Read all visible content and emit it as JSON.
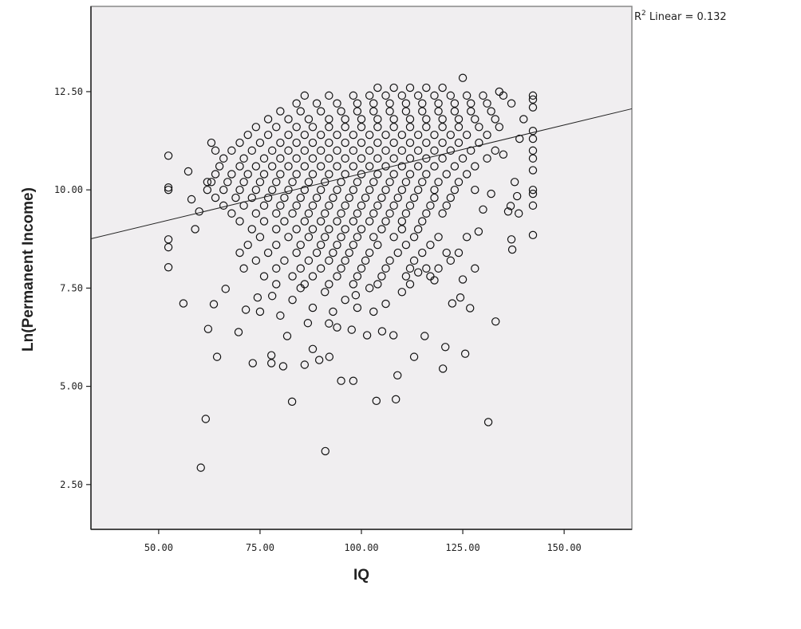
{
  "chart_data": {
    "type": "scatter",
    "xlabel": "IQ",
    "ylabel": "Ln(Permanent Income)",
    "xlim": [
      33.3,
      166.7
    ],
    "ylim": [
      1.36,
      14.67
    ],
    "xticks": [
      50,
      75,
      100,
      125,
      150
    ],
    "xtick_labels": [
      "50.00",
      "75.00",
      "100.00",
      "125.00",
      "150.00"
    ],
    "yticks": [
      2.5,
      5,
      7.5,
      10,
      12.5
    ],
    "ytick_labels": [
      "2.50",
      "5.00",
      "7.50",
      "10.00",
      "12.50"
    ],
    "grid": false,
    "background": "#f0eef0",
    "marker": "hollow-circle",
    "marker_color": "#111111",
    "annotation": {
      "prefix": "R",
      "sup": "2",
      "text": " Linear = 0.132"
    },
    "fit_line": {
      "type": "linear",
      "r_squared": 0.132,
      "intercept": 7.93,
      "slope": 0.0248
    },
    "points": [
      [
        52.4,
        10.87
      ],
      [
        52.4,
        10.06
      ],
      [
        52.4,
        10.0
      ],
      [
        52.4,
        8.74
      ],
      [
        52.4,
        8.54
      ],
      [
        52.4,
        8.03
      ],
      [
        56.1,
        7.11
      ],
      [
        60.4,
        2.93
      ],
      [
        61.6,
        4.17
      ],
      [
        62.2,
        6.46
      ],
      [
        63.6,
        7.09
      ],
      [
        64.4,
        5.75
      ],
      [
        58.1,
        9.76
      ],
      [
        57.3,
        10.47
      ],
      [
        59,
        9.0
      ],
      [
        60,
        9.45
      ],
      [
        62,
        10.2
      ],
      [
        63,
        11.2
      ],
      [
        64,
        11.0
      ],
      [
        66.5,
        7.48
      ],
      [
        69.7,
        6.38
      ],
      [
        71.5,
        6.95
      ],
      [
        73.2,
        5.59
      ],
      [
        74.4,
        7.26
      ],
      [
        77.8,
        5.59
      ],
      [
        77.8,
        5.79
      ],
      [
        80.7,
        5.51
      ],
      [
        81.7,
        6.28
      ],
      [
        82.9,
        4.61
      ],
      [
        86.0,
        5.55
      ],
      [
        86.8,
        6.61
      ],
      [
        88.0,
        5.95
      ],
      [
        89.6,
        5.67
      ],
      [
        91.1,
        3.35
      ],
      [
        92.1,
        5.75
      ],
      [
        95.0,
        5.14
      ],
      [
        98.0,
        5.14
      ],
      [
        97.6,
        6.44
      ],
      [
        98.6,
        7.32
      ],
      [
        101.4,
        6.3
      ],
      [
        103.7,
        4.63
      ],
      [
        105.1,
        6.4
      ],
      [
        107.9,
        6.3
      ],
      [
        108.5,
        4.67
      ],
      [
        108.9,
        5.28
      ],
      [
        113.0,
        5.75
      ],
      [
        115.6,
        6.28
      ],
      [
        120.1,
        5.45
      ],
      [
        120.7,
        6.0
      ],
      [
        122.4,
        7.11
      ],
      [
        124.4,
        7.26
      ],
      [
        125.0,
        7.72
      ],
      [
        125.6,
        5.83
      ],
      [
        126.8,
        6.99
      ],
      [
        128.9,
        8.94
      ],
      [
        133.1,
        6.65
      ],
      [
        131.3,
        4.09
      ],
      [
        142.3,
        12.4
      ],
      [
        142.3,
        12.3
      ],
      [
        142.3,
        12.1
      ],
      [
        142.3,
        11.5
      ],
      [
        142.3,
        11.3
      ],
      [
        142.3,
        11.0
      ],
      [
        142.3,
        10.8
      ],
      [
        142.3,
        10.5
      ],
      [
        142.3,
        10.0
      ],
      [
        142.3,
        9.9
      ],
      [
        142.3,
        9.6
      ],
      [
        142.3,
        8.85
      ],
      [
        136.8,
        9.59
      ],
      [
        136.2,
        9.45
      ],
      [
        137,
        8.74
      ],
      [
        137.2,
        8.48
      ],
      [
        138.4,
        9.84
      ],
      [
        138.8,
        9.4
      ],
      [
        137.8,
        10.2
      ],
      [
        135,
        10.9
      ],
      [
        139,
        11.3
      ],
      [
        140,
        11.8
      ],
      [
        134,
        12.5
      ],
      [
        83,
        7.2
      ],
      [
        85,
        7.5
      ],
      [
        88,
        7.0
      ],
      [
        91,
        7.4
      ],
      [
        93,
        6.9
      ],
      [
        96,
        7.2
      ],
      [
        99,
        7.0
      ],
      [
        102,
        7.5
      ],
      [
        106,
        7.1
      ],
      [
        110,
        7.4
      ],
      [
        114,
        7.9
      ],
      [
        118,
        7.7
      ],
      [
        78,
        7.3
      ],
      [
        80,
        6.8
      ],
      [
        75,
        6.9
      ],
      [
        92,
        6.6
      ],
      [
        94,
        6.5
      ],
      [
        103,
        6.9
      ],
      [
        116,
        8.0
      ],
      [
        121,
        8.4
      ],
      [
        126,
        8.8
      ],
      [
        130,
        9.5
      ],
      [
        132,
        9.9
      ],
      [
        104,
        12.6
      ],
      [
        108,
        12.6
      ],
      [
        112,
        12.6
      ],
      [
        116,
        12.6
      ],
      [
        120,
        12.6
      ],
      [
        125,
        12.85
      ],
      [
        86,
        12.4
      ],
      [
        92,
        12.4
      ],
      [
        98,
        12.4
      ],
      [
        102,
        12.4
      ],
      [
        106,
        12.4
      ],
      [
        110,
        12.4
      ],
      [
        114,
        12.4
      ],
      [
        118,
        12.4
      ],
      [
        122,
        12.4
      ],
      [
        126,
        12.4
      ],
      [
        130,
        12.4
      ],
      [
        135,
        12.4
      ],
      [
        84,
        12.2
      ],
      [
        89,
        12.2
      ],
      [
        94,
        12.2
      ],
      [
        99,
        12.2
      ],
      [
        103,
        12.2
      ],
      [
        107,
        12.2
      ],
      [
        111,
        12.2
      ],
      [
        115,
        12.2
      ],
      [
        119,
        12.2
      ],
      [
        123,
        12.2
      ],
      [
        127,
        12.2
      ],
      [
        131,
        12.2
      ],
      [
        137,
        12.2
      ],
      [
        80,
        12.0
      ],
      [
        85,
        12.0
      ],
      [
        90,
        12.0
      ],
      [
        95,
        12.0
      ],
      [
        99,
        12.0
      ],
      [
        103,
        12.0
      ],
      [
        107,
        12.0
      ],
      [
        111,
        12.0
      ],
      [
        115,
        12.0
      ],
      [
        119,
        12.0
      ],
      [
        123,
        12.0
      ],
      [
        127,
        12.0
      ],
      [
        132,
        12.0
      ],
      [
        77,
        11.8
      ],
      [
        82,
        11.8
      ],
      [
        87,
        11.8
      ],
      [
        92,
        11.8
      ],
      [
        96,
        11.8
      ],
      [
        100,
        11.8
      ],
      [
        104,
        11.8
      ],
      [
        108,
        11.8
      ],
      [
        112,
        11.8
      ],
      [
        116,
        11.8
      ],
      [
        120,
        11.8
      ],
      [
        124,
        11.8
      ],
      [
        128,
        11.8
      ],
      [
        133,
        11.8
      ],
      [
        74,
        11.6
      ],
      [
        79,
        11.6
      ],
      [
        84,
        11.6
      ],
      [
        88,
        11.6
      ],
      [
        92,
        11.6
      ],
      [
        96,
        11.6
      ],
      [
        100,
        11.6
      ],
      [
        104,
        11.6
      ],
      [
        108,
        11.6
      ],
      [
        112,
        11.6
      ],
      [
        116,
        11.6
      ],
      [
        120,
        11.6
      ],
      [
        124,
        11.6
      ],
      [
        129,
        11.6
      ],
      [
        134,
        11.6
      ],
      [
        72,
        11.4
      ],
      [
        77,
        11.4
      ],
      [
        82,
        11.4
      ],
      [
        86,
        11.4
      ],
      [
        90,
        11.4
      ],
      [
        94,
        11.4
      ],
      [
        98,
        11.4
      ],
      [
        102,
        11.4
      ],
      [
        106,
        11.4
      ],
      [
        110,
        11.4
      ],
      [
        114,
        11.4
      ],
      [
        118,
        11.4
      ],
      [
        122,
        11.4
      ],
      [
        126,
        11.4
      ],
      [
        131,
        11.4
      ],
      [
        70,
        11.2
      ],
      [
        75,
        11.2
      ],
      [
        80,
        11.2
      ],
      [
        84,
        11.2
      ],
      [
        88,
        11.2
      ],
      [
        92,
        11.2
      ],
      [
        96,
        11.2
      ],
      [
        100,
        11.2
      ],
      [
        104,
        11.2
      ],
      [
        108,
        11.2
      ],
      [
        112,
        11.2
      ],
      [
        116,
        11.2
      ],
      [
        120,
        11.2
      ],
      [
        124,
        11.2
      ],
      [
        129,
        11.2
      ],
      [
        68,
        11.0
      ],
      [
        73,
        11.0
      ],
      [
        78,
        11.0
      ],
      [
        82,
        11.0
      ],
      [
        86,
        11.0
      ],
      [
        90,
        11.0
      ],
      [
        94,
        11.0
      ],
      [
        98,
        11.0
      ],
      [
        102,
        11.0
      ],
      [
        106,
        11.0
      ],
      [
        110,
        11.0
      ],
      [
        114,
        11.0
      ],
      [
        118,
        11.0
      ],
      [
        122,
        11.0
      ],
      [
        127,
        11.0
      ],
      [
        133,
        11.0
      ],
      [
        66,
        10.8
      ],
      [
        71,
        10.8
      ],
      [
        76,
        10.8
      ],
      [
        80,
        10.8
      ],
      [
        84,
        10.8
      ],
      [
        88,
        10.8
      ],
      [
        92,
        10.8
      ],
      [
        96,
        10.8
      ],
      [
        100,
        10.8
      ],
      [
        104,
        10.8
      ],
      [
        108,
        10.8
      ],
      [
        112,
        10.8
      ],
      [
        116,
        10.8
      ],
      [
        120,
        10.8
      ],
      [
        125,
        10.8
      ],
      [
        131,
        10.8
      ],
      [
        65,
        10.6
      ],
      [
        70,
        10.6
      ],
      [
        74,
        10.6
      ],
      [
        78,
        10.6
      ],
      [
        82,
        10.6
      ],
      [
        86,
        10.6
      ],
      [
        90,
        10.6
      ],
      [
        94,
        10.6
      ],
      [
        98,
        10.6
      ],
      [
        102,
        10.6
      ],
      [
        106,
        10.6
      ],
      [
        110,
        10.6
      ],
      [
        114,
        10.6
      ],
      [
        118,
        10.6
      ],
      [
        123,
        10.6
      ],
      [
        128,
        10.6
      ],
      [
        64,
        10.4
      ],
      [
        68,
        10.4
      ],
      [
        72,
        10.4
      ],
      [
        76,
        10.4
      ],
      [
        80,
        10.4
      ],
      [
        84,
        10.4
      ],
      [
        88,
        10.4
      ],
      [
        92,
        10.4
      ],
      [
        96,
        10.4
      ],
      [
        100,
        10.4
      ],
      [
        104,
        10.4
      ],
      [
        108,
        10.4
      ],
      [
        112,
        10.4
      ],
      [
        116,
        10.4
      ],
      [
        121,
        10.4
      ],
      [
        126,
        10.4
      ],
      [
        63,
        10.2
      ],
      [
        67,
        10.2
      ],
      [
        71,
        10.2
      ],
      [
        75,
        10.2
      ],
      [
        79,
        10.2
      ],
      [
        83,
        10.2
      ],
      [
        87,
        10.2
      ],
      [
        91,
        10.2
      ],
      [
        95,
        10.2
      ],
      [
        99,
        10.2
      ],
      [
        103,
        10.2
      ],
      [
        107,
        10.2
      ],
      [
        111,
        10.2
      ],
      [
        115,
        10.2
      ],
      [
        119,
        10.2
      ],
      [
        124,
        10.2
      ],
      [
        62,
        10.0
      ],
      [
        66,
        10.0
      ],
      [
        70,
        10.0
      ],
      [
        74,
        10.0
      ],
      [
        78,
        10.0
      ],
      [
        82,
        10.0
      ],
      [
        86,
        10.0
      ],
      [
        90,
        10.0
      ],
      [
        94,
        10.0
      ],
      [
        98,
        10.0
      ],
      [
        102,
        10.0
      ],
      [
        106,
        10.0
      ],
      [
        110,
        10.0
      ],
      [
        114,
        10.0
      ],
      [
        118,
        10.0
      ],
      [
        123,
        10.0
      ],
      [
        128,
        10.0
      ],
      [
        64,
        9.8
      ],
      [
        69,
        9.8
      ],
      [
        73,
        9.8
      ],
      [
        77,
        9.8
      ],
      [
        81,
        9.8
      ],
      [
        85,
        9.8
      ],
      [
        89,
        9.8
      ],
      [
        93,
        9.8
      ],
      [
        97,
        9.8
      ],
      [
        101,
        9.8
      ],
      [
        105,
        9.8
      ],
      [
        109,
        9.8
      ],
      [
        113,
        9.8
      ],
      [
        118,
        9.8
      ],
      [
        122,
        9.8
      ],
      [
        66,
        9.6
      ],
      [
        71,
        9.6
      ],
      [
        76,
        9.6
      ],
      [
        80,
        9.6
      ],
      [
        84,
        9.6
      ],
      [
        88,
        9.6
      ],
      [
        92,
        9.6
      ],
      [
        96,
        9.6
      ],
      [
        100,
        9.6
      ],
      [
        104,
        9.6
      ],
      [
        108,
        9.6
      ],
      [
        112,
        9.6
      ],
      [
        117,
        9.6
      ],
      [
        121,
        9.6
      ],
      [
        68,
        9.4
      ],
      [
        74,
        9.4
      ],
      [
        79,
        9.4
      ],
      [
        83,
        9.4
      ],
      [
        87,
        9.4
      ],
      [
        91,
        9.4
      ],
      [
        95,
        9.4
      ],
      [
        99,
        9.4
      ],
      [
        103,
        9.4
      ],
      [
        107,
        9.4
      ],
      [
        111,
        9.4
      ],
      [
        116,
        9.4
      ],
      [
        120,
        9.4
      ],
      [
        70,
        9.2
      ],
      [
        76,
        9.2
      ],
      [
        81,
        9.2
      ],
      [
        86,
        9.2
      ],
      [
        90,
        9.2
      ],
      [
        94,
        9.2
      ],
      [
        98,
        9.2
      ],
      [
        102,
        9.2
      ],
      [
        106,
        9.2
      ],
      [
        110,
        9.2
      ],
      [
        115,
        9.2
      ],
      [
        73,
        9.0
      ],
      [
        79,
        9.0
      ],
      [
        84,
        9.0
      ],
      [
        88,
        9.0
      ],
      [
        92,
        9.0
      ],
      [
        96,
        9.0
      ],
      [
        100,
        9.0
      ],
      [
        105,
        9.0
      ],
      [
        110,
        9.0
      ],
      [
        114,
        9.0
      ],
      [
        75,
        8.8
      ],
      [
        82,
        8.8
      ],
      [
        87,
        8.8
      ],
      [
        91,
        8.8
      ],
      [
        95,
        8.8
      ],
      [
        99,
        8.8
      ],
      [
        103,
        8.8
      ],
      [
        108,
        8.8
      ],
      [
        113,
        8.8
      ],
      [
        119,
        8.8
      ],
      [
        72,
        8.6
      ],
      [
        79,
        8.6
      ],
      [
        85,
        8.6
      ],
      [
        90,
        8.6
      ],
      [
        94,
        8.6
      ],
      [
        98,
        8.6
      ],
      [
        104,
        8.6
      ],
      [
        111,
        8.6
      ],
      [
        117,
        8.6
      ],
      [
        70,
        8.4
      ],
      [
        77,
        8.4
      ],
      [
        84,
        8.4
      ],
      [
        89,
        8.4
      ],
      [
        93,
        8.4
      ],
      [
        97,
        8.4
      ],
      [
        102,
        8.4
      ],
      [
        109,
        8.4
      ],
      [
        115,
        8.4
      ],
      [
        124,
        8.4
      ],
      [
        74,
        8.2
      ],
      [
        81,
        8.2
      ],
      [
        87,
        8.2
      ],
      [
        92,
        8.2
      ],
      [
        96,
        8.2
      ],
      [
        101,
        8.2
      ],
      [
        107,
        8.2
      ],
      [
        113,
        8.2
      ],
      [
        122,
        8.2
      ],
      [
        71,
        8.0
      ],
      [
        79,
        8.0
      ],
      [
        85,
        8.0
      ],
      [
        90,
        8.0
      ],
      [
        95,
        8.0
      ],
      [
        100,
        8.0
      ],
      [
        106,
        8.0
      ],
      [
        112,
        8.0
      ],
      [
        119,
        8.0
      ],
      [
        128,
        8.0
      ],
      [
        76,
        7.8
      ],
      [
        83,
        7.8
      ],
      [
        88,
        7.8
      ],
      [
        94,
        7.8
      ],
      [
        99,
        7.8
      ],
      [
        105,
        7.8
      ],
      [
        111,
        7.8
      ],
      [
        117,
        7.8
      ],
      [
        79,
        7.6
      ],
      [
        86,
        7.6
      ],
      [
        92,
        7.6
      ],
      [
        98,
        7.6
      ],
      [
        104,
        7.6
      ],
      [
        112,
        7.6
      ]
    ]
  }
}
